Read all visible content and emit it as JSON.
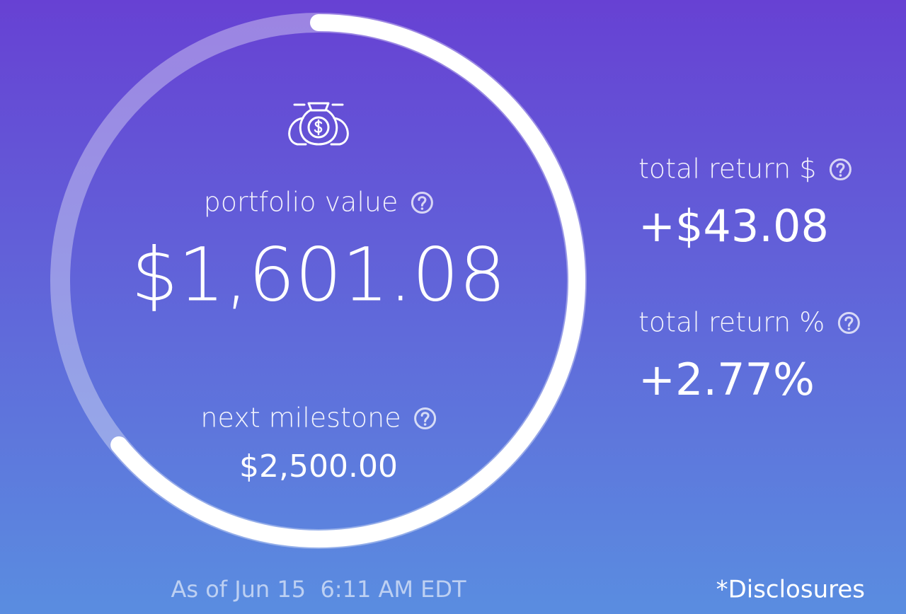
{
  "portfolio": {
    "label": "portfolio value",
    "value": "$1,601.08"
  },
  "milestone": {
    "label": "next milestone",
    "value": "$2,500.00"
  },
  "total_return_amount": {
    "label": "total return $",
    "value": "+$43.08"
  },
  "total_return_percent": {
    "label": "total return %",
    "value": "+2.77%"
  },
  "footer": {
    "timestamp": "As of Jun 15  6:11 AM EDT",
    "disclosures": "*Disclosures"
  }
}
